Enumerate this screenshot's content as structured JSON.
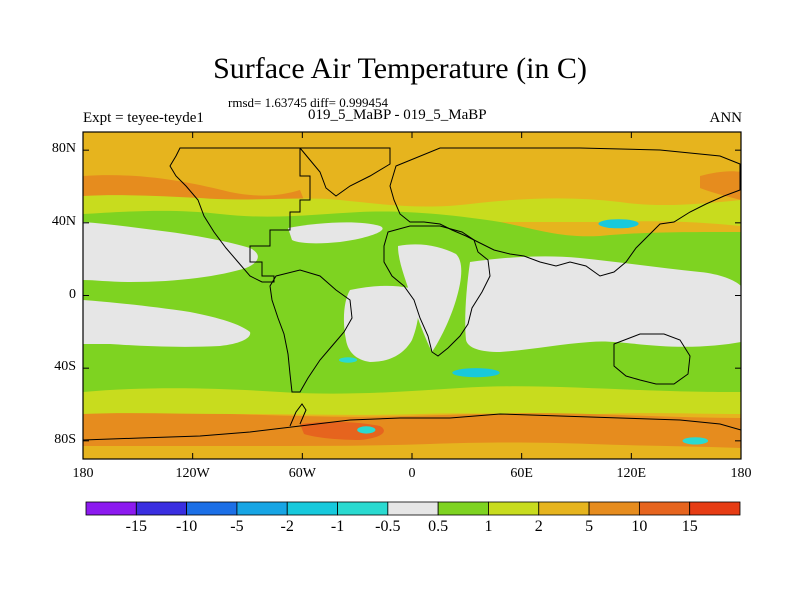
{
  "chart_data": {
    "type": "heatmap",
    "title": "Surface Air Temperature (in C)",
    "stats_text": "rmsd= 1.63745 diff= 0.999454",
    "left_label": "Expt = teyee-teyde1",
    "subtitle": "019_5_MaBP - 019_5_MaBP",
    "right_label": "ANN",
    "projection": "cylindrical-equidistant",
    "lon_range": [
      -180,
      180
    ],
    "lat_range": [
      -90,
      90
    ],
    "y_ticks": [
      {
        "value": 80,
        "label": "80N"
      },
      {
        "value": 40,
        "label": "40N"
      },
      {
        "value": 0,
        "label": "0"
      },
      {
        "value": -40,
        "label": "40S"
      },
      {
        "value": -80,
        "label": "80S"
      }
    ],
    "x_ticks": [
      {
        "value": -180,
        "label": "180"
      },
      {
        "value": -120,
        "label": "120W"
      },
      {
        "value": -60,
        "label": "60W"
      },
      {
        "value": 0,
        "label": "0"
      },
      {
        "value": 60,
        "label": "60E"
      },
      {
        "value": 120,
        "label": "120E"
      },
      {
        "value": 180,
        "label": "180"
      }
    ],
    "colorbar": {
      "labels": [
        "-15",
        "-10",
        "-5",
        "-2",
        "-1",
        "-0.5",
        "0.5",
        "1",
        "2",
        "5",
        "10",
        "15"
      ],
      "colors": [
        "#8c1aef",
        "#3a2ee0",
        "#1c6fe6",
        "#17a5e4",
        "#17c9dc",
        "#2adad0",
        "#e6e6e6",
        "#7ed321",
        "#c8dc1e",
        "#e6b41e",
        "#e68c1e",
        "#e6641e",
        "#e63c14"
      ]
    },
    "regions": [
      {
        "level": "-2",
        "lon": [
          102,
          124
        ],
        "lat": [
          37,
          42
        ]
      },
      {
        "level": "-2",
        "lon": [
          22,
          48
        ],
        "lat": [
          -45,
          -40
        ]
      },
      {
        "level": "-1",
        "lon": [
          -40,
          -30
        ],
        "lat": [
          -37,
          -34
        ]
      },
      {
        "level": "-1",
        "lon": [
          -30,
          -20
        ],
        "lat": [
          -76,
          -72
        ]
      },
      {
        "level": "-1",
        "lon": [
          148,
          162
        ],
        "lat": [
          -82,
          -78
        ]
      }
    ]
  }
}
